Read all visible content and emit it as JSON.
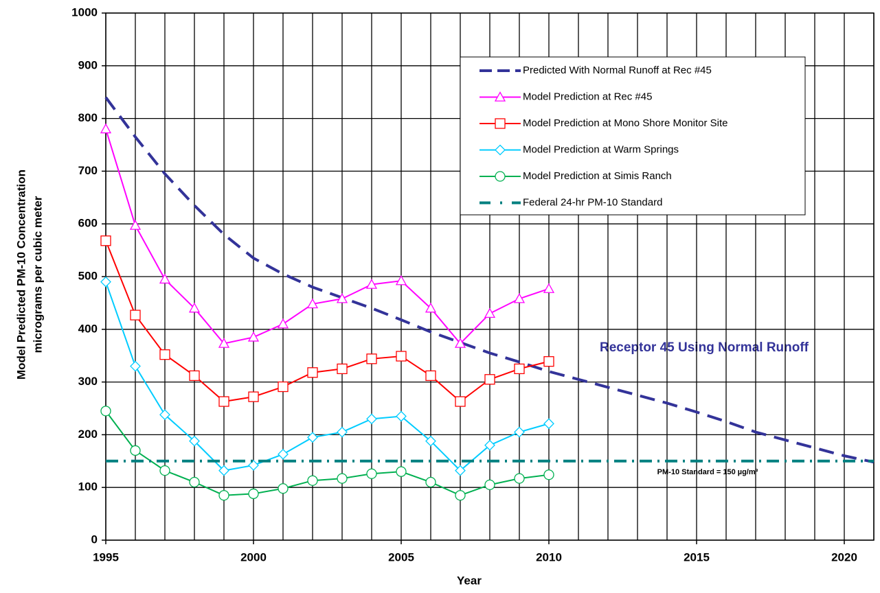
{
  "chart_data": {
    "type": "line",
    "x_label": "Year",
    "y_label": [
      "Model Predicted PM-10 Concentration",
      "micrograms per cubic meter"
    ],
    "x": [
      1995,
      1996,
      1997,
      1998,
      1999,
      2000,
      2001,
      2002,
      2003,
      2004,
      2005,
      2006,
      2007,
      2008,
      2009,
      2010,
      2011,
      2012,
      2013,
      2014,
      2015,
      2016,
      2017,
      2018,
      2019,
      2020,
      2021
    ],
    "xlim": [
      1995,
      2021
    ],
    "xticks": [
      1995,
      2000,
      2005,
      2010,
      2015,
      2020
    ],
    "ylim": [
      0,
      1000
    ],
    "yticks": [
      0,
      100,
      200,
      300,
      400,
      500,
      600,
      700,
      800,
      900,
      1000
    ],
    "grid": true,
    "legend": "upper right",
    "series": [
      {
        "name": "Predicted With Normal Runoff at Rec #45",
        "color": "#333399",
        "style": "dashed",
        "marker": "none",
        "values": [
          840,
          765,
          695,
          635,
          580,
          535,
          505,
          480,
          460,
          440,
          418,
          395,
          375,
          355,
          338,
          320,
          305,
          290,
          275,
          260,
          243,
          225,
          205,
          190,
          175,
          160,
          148
        ]
      },
      {
        "name": "Model Prediction at Rec #45",
        "color": "#ff00ff",
        "style": "solid",
        "marker": "triangle",
        "values": [
          780,
          597,
          495,
          440,
          373,
          385,
          410,
          448,
          458,
          485,
          492,
          440,
          373,
          430,
          458,
          477,
          null,
          null,
          null,
          null,
          null,
          null,
          null,
          null,
          null,
          null,
          null
        ]
      },
      {
        "name": "Model Prediction at Mono Shore Monitor Site",
        "color": "#ff0000",
        "style": "solid",
        "marker": "square",
        "values": [
          568,
          427,
          352,
          312,
          263,
          272,
          291,
          318,
          325,
          344,
          349,
          312,
          263,
          305,
          325,
          339,
          null,
          null,
          null,
          null,
          null,
          null,
          null,
          null,
          null,
          null,
          null
        ]
      },
      {
        "name": "Model Prediction at Warm Springs",
        "color": "#00ccff",
        "style": "solid",
        "marker": "diamond",
        "values": [
          490,
          330,
          238,
          188,
          132,
          142,
          163,
          195,
          205,
          230,
          235,
          188,
          132,
          180,
          205,
          221,
          null,
          null,
          null,
          null,
          null,
          null,
          null,
          null,
          null,
          null,
          null
        ]
      },
      {
        "name": "Model Prediction at Simis Ranch",
        "color": "#00b050",
        "style": "solid",
        "marker": "circle",
        "values": [
          245,
          170,
          132,
          110,
          85,
          88,
          98,
          113,
          117,
          126,
          130,
          110,
          85,
          105,
          117,
          124,
          null,
          null,
          null,
          null,
          null,
          null,
          null,
          null,
          null,
          null,
          null
        ]
      },
      {
        "name": "Federal 24-hr PM-10 Standard",
        "color": "#008080",
        "style": "dashdot",
        "marker": "none",
        "values": [
          150,
          150,
          150,
          150,
          150,
          150,
          150,
          150,
          150,
          150,
          150,
          150,
          150,
          150,
          150,
          150,
          150,
          150,
          150,
          150,
          150,
          150,
          150,
          150,
          150,
          150,
          150
        ]
      }
    ],
    "annotations": [
      "Receptor 45 Using Normal Runoff",
      "PM-10 Standard = 150 µg/m³"
    ]
  }
}
